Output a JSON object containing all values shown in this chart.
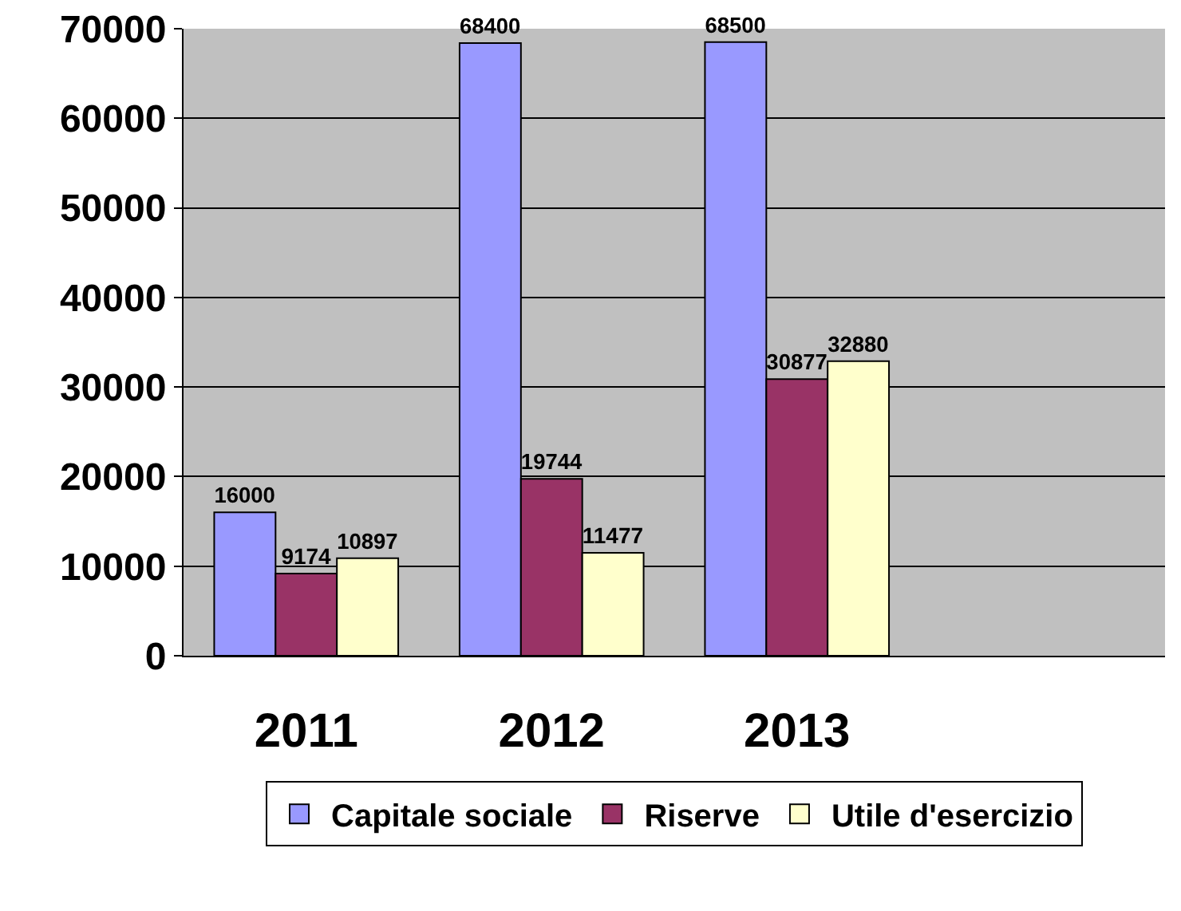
{
  "chart_data": {
    "type": "bar",
    "categories": [
      "2011",
      "2012",
      "2013",
      null
    ],
    "series": [
      {
        "name": "Capitale sociale",
        "color": "#9999ff",
        "values": [
          16000,
          68400,
          68500,
          null
        ]
      },
      {
        "name": "Riserve",
        "color": "#993366",
        "values": [
          9174,
          19744,
          30877,
          null
        ]
      },
      {
        "name": "Utile d'esercizio",
        "color": "#ffffcc",
        "values": [
          10897,
          11477,
          32880,
          null
        ]
      }
    ],
    "ylim": [
      0,
      70000
    ],
    "yticks": [
      0,
      10000,
      20000,
      30000,
      40000,
      50000,
      60000,
      70000
    ],
    "grid": "y",
    "legend": "bottom",
    "data_labels": true
  }
}
